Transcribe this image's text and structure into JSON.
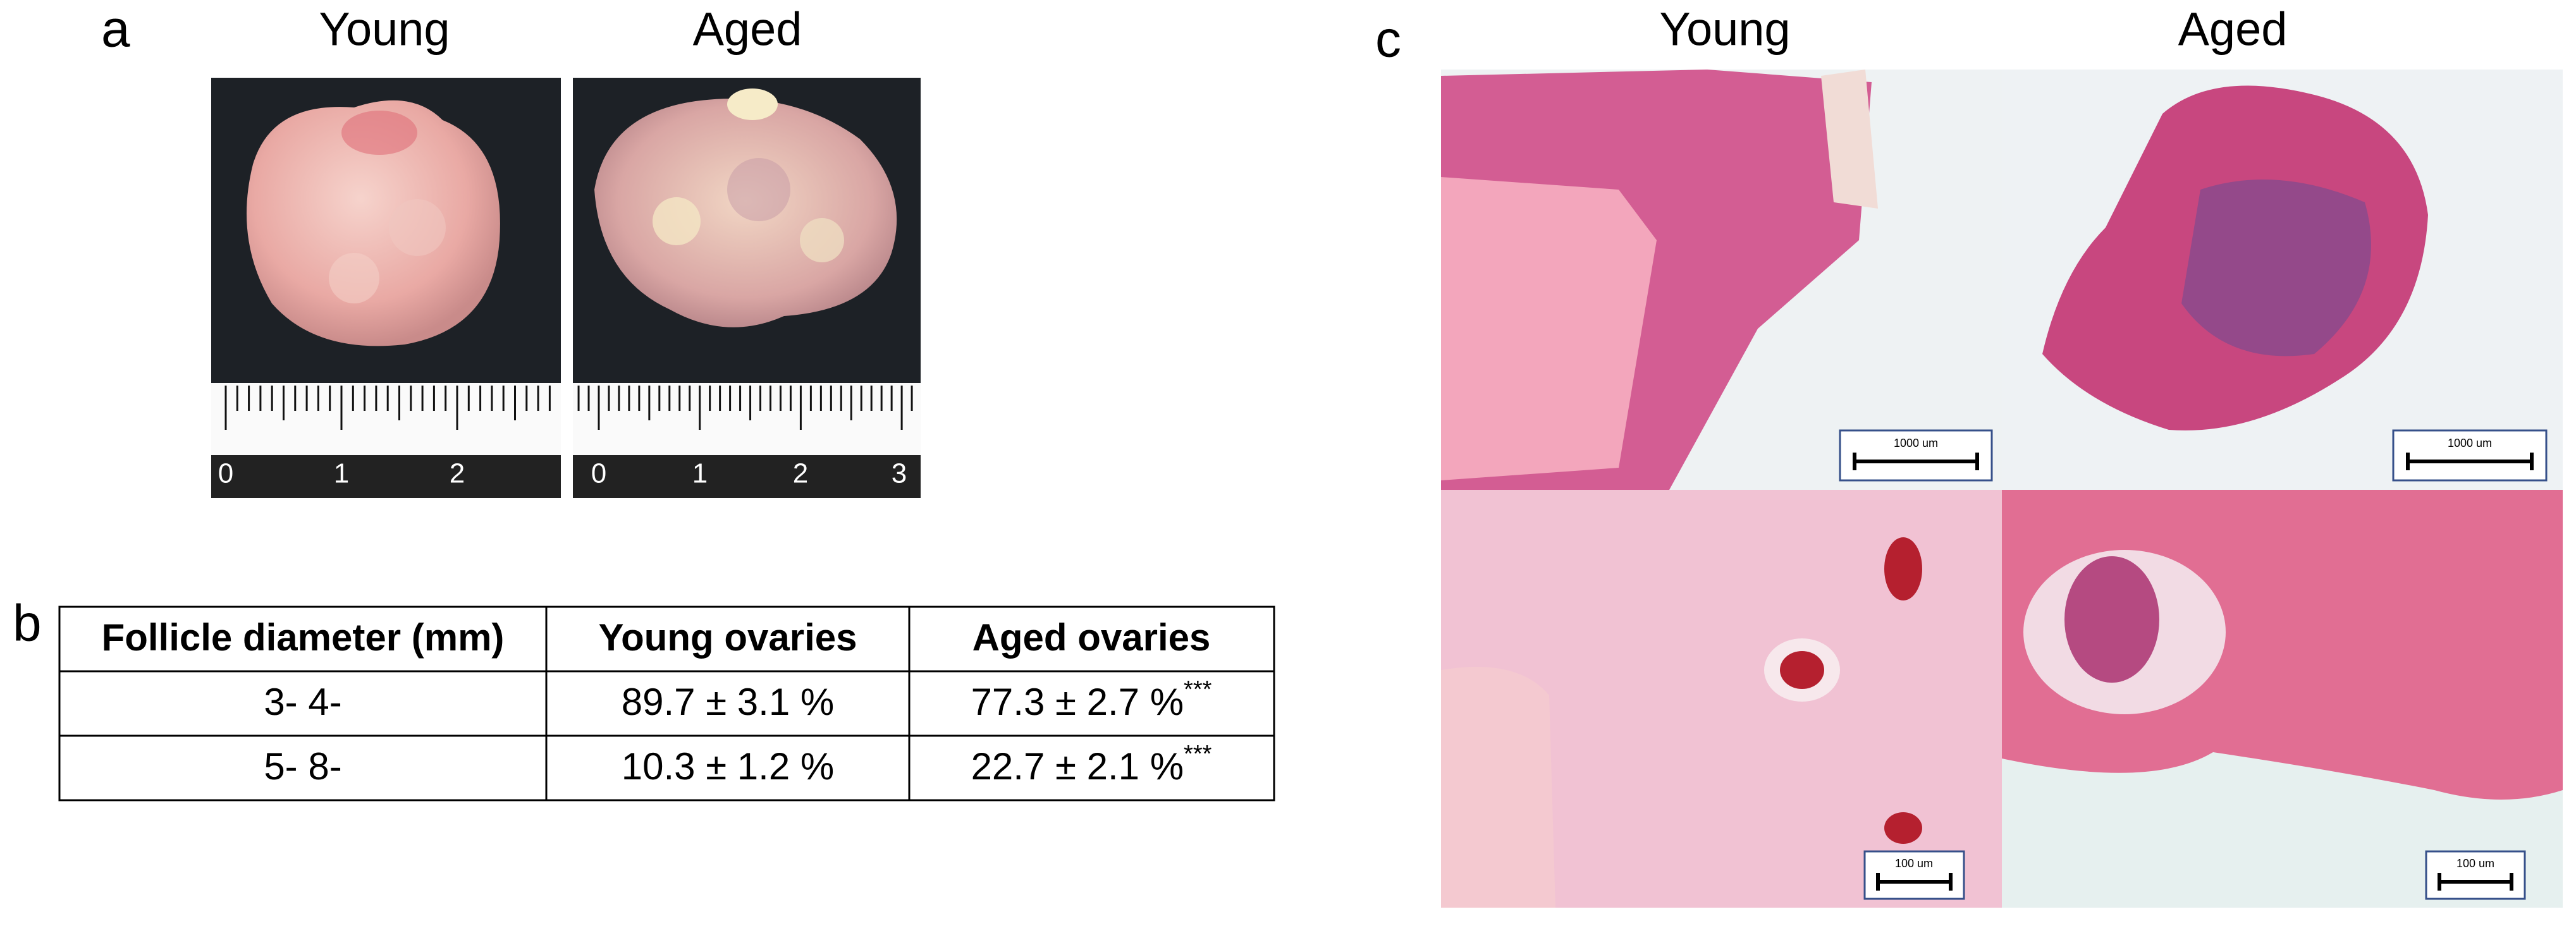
{
  "panel_a": {
    "label": "a",
    "columns": [
      "Young",
      "Aged"
    ],
    "ruler_labels_young": [
      "0",
      "1",
      "2"
    ],
    "ruler_labels_aged": [
      "0",
      "1",
      "2",
      "3"
    ]
  },
  "panel_b": {
    "label": "b",
    "table": {
      "header": [
        "Follicle diameter (mm)",
        "Young ovaries",
        "Aged ovaries"
      ],
      "rows": [
        [
          "3- 4-",
          "89.7 ± 3.1 %",
          "77.3 ± 2.7 %"
        ],
        [
          "5- 8-",
          "10.3 ± 1.2 %",
          "22.7 ± 2.1 %"
        ]
      ],
      "significance": [
        "***",
        "***"
      ]
    }
  },
  "panel_c": {
    "label": "c",
    "columns": [
      "Young",
      "Aged"
    ],
    "scale_bars": [
      "1000 um",
      "1000 um",
      "100 um",
      "100 um"
    ]
  }
}
